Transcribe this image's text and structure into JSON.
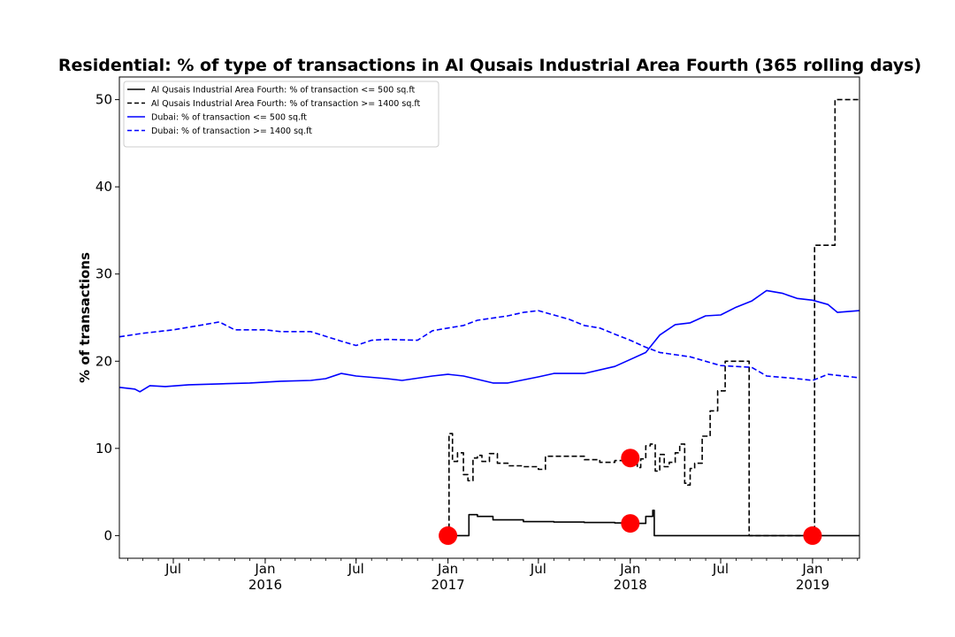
{
  "chart_data": {
    "type": "line",
    "title": "Residential: % of type of transactions in Al Qusais Industrial Area Fourth (365 rolling days)",
    "xlabel": "",
    "ylabel": "% of transactions",
    "xlim": [
      "2015-03-15",
      "2019-04-05"
    ],
    "ylim": [
      -2.6,
      52.6
    ],
    "yticks": [
      0,
      10,
      20,
      30,
      40,
      50
    ],
    "xticks": [
      {
        "date": "2015-07-01",
        "label": "Jul",
        "year": ""
      },
      {
        "date": "2016-01-01",
        "label": "Jan",
        "year": "2016"
      },
      {
        "date": "2016-07-01",
        "label": "Jul",
        "year": ""
      },
      {
        "date": "2017-01-01",
        "label": "Jan",
        "year": "2017"
      },
      {
        "date": "2017-07-01",
        "label": "Jul",
        "year": ""
      },
      {
        "date": "2018-01-01",
        "label": "Jan",
        "year": "2018"
      },
      {
        "date": "2018-07-01",
        "label": "Jul",
        "year": ""
      },
      {
        "date": "2019-01-01",
        "label": "Jan",
        "year": "2019"
      }
    ],
    "grid": false,
    "legend_position": "top-left",
    "series": [
      {
        "name": "Al Qusais Industrial Area Fourth: % of transaction <= 500 sq.ft",
        "color": "#000000",
        "dash": "solid",
        "step": true,
        "x": [
          "2017-01-01",
          "2017-02-10",
          "2017-02-12",
          "2017-03-01",
          "2017-04-01",
          "2017-06-01",
          "2017-08-01",
          "2017-10-01",
          "2017-12-01",
          "2018-01-01",
          "2018-02-01",
          "2018-02-15",
          "2018-02-18",
          "2019-04-05"
        ],
        "y": [
          0,
          0,
          2.4,
          2.2,
          1.8,
          1.6,
          1.55,
          1.5,
          1.45,
          1.4,
          2.2,
          2.9,
          0,
          0
        ]
      },
      {
        "name": "Al Qusais Industrial Area Fourth: % of transaction >= 1400 sq.ft",
        "color": "#000000",
        "dash": "dashed",
        "step": true,
        "x": [
          "2017-01-01",
          "2017-01-03",
          "2017-01-10",
          "2017-01-20",
          "2017-02-01",
          "2017-02-10",
          "2017-02-20",
          "2017-03-01",
          "2017-03-10",
          "2017-03-25",
          "2017-04-10",
          "2017-05-01",
          "2017-06-01",
          "2017-07-01",
          "2017-07-15",
          "2017-09-01",
          "2017-10-01",
          "2017-11-01",
          "2017-12-01",
          "2018-01-01",
          "2018-01-15",
          "2018-01-22",
          "2018-02-01",
          "2018-02-10",
          "2018-02-20",
          "2018-03-01",
          "2018-03-10",
          "2018-03-20",
          "2018-04-01",
          "2018-04-10",
          "2018-04-20",
          "2018-04-26",
          "2018-05-01",
          "2018-05-10",
          "2018-05-25",
          "2018-06-10",
          "2018-06-25",
          "2018-07-10",
          "2018-08-10",
          "2018-08-25",
          "2018-08-27",
          "2019-01-01",
          "2019-01-05",
          "2019-02-15",
          "2019-04-05"
        ],
        "y": [
          0,
          11.7,
          8.5,
          9.5,
          7.0,
          6.3,
          8.9,
          9.2,
          8.5,
          9.4,
          8.3,
          8.0,
          7.9,
          7.6,
          9.1,
          9.1,
          8.7,
          8.4,
          8.6,
          8.9,
          7.8,
          8.8,
          10.3,
          10.5,
          7.4,
          9.3,
          7.9,
          8.4,
          9.5,
          10.5,
          6.0,
          5.8,
          7.7,
          8.3,
          11.4,
          14.3,
          16.6,
          20.0,
          20.0,
          20.0,
          0,
          0,
          33.3,
          50.0,
          50.0
        ]
      },
      {
        "name": "Dubai: % of transaction <= 500 sq.ft",
        "color": "#0000ff",
        "dash": "solid",
        "step": false,
        "x": [
          "2015-03-15",
          "2015-04-15",
          "2015-04-25",
          "2015-05-15",
          "2015-06-15",
          "2015-08-01",
          "2015-10-01",
          "2015-12-01",
          "2016-02-01",
          "2016-04-01",
          "2016-05-01",
          "2016-06-01",
          "2016-07-01",
          "2016-09-01",
          "2016-10-01",
          "2016-12-01",
          "2017-01-01",
          "2017-02-01",
          "2017-04-01",
          "2017-05-01",
          "2017-07-01",
          "2017-08-01",
          "2017-10-01",
          "2017-12-01",
          "2018-01-01",
          "2018-02-01",
          "2018-03-01",
          "2018-04-01",
          "2018-05-01",
          "2018-06-01",
          "2018-07-01",
          "2018-08-01",
          "2018-09-01",
          "2018-10-01",
          "2018-11-01",
          "2018-12-01",
          "2019-01-01",
          "2019-02-01",
          "2019-02-20",
          "2019-04-05"
        ],
        "y": [
          17.0,
          16.8,
          16.5,
          17.2,
          17.1,
          17.3,
          17.4,
          17.5,
          17.7,
          17.8,
          18.0,
          18.6,
          18.3,
          18.0,
          17.8,
          18.3,
          18.5,
          18.3,
          17.5,
          17.5,
          18.2,
          18.6,
          18.6,
          19.4,
          20.2,
          21.0,
          23.0,
          24.2,
          24.4,
          25.2,
          25.3,
          26.2,
          26.9,
          28.1,
          27.8,
          27.2,
          27.0,
          26.5,
          25.6,
          25.8
        ]
      },
      {
        "name": "Dubai: % of transaction >= 1400 sq.ft",
        "color": "#0000ff",
        "dash": "dashed",
        "step": false,
        "x": [
          "2015-03-15",
          "2015-05-01",
          "2015-07-01",
          "2015-09-01",
          "2015-10-01",
          "2015-11-01",
          "2016-01-01",
          "2016-02-01",
          "2016-04-01",
          "2016-06-01",
          "2016-07-01",
          "2016-08-01",
          "2016-09-01",
          "2016-11-01",
          "2016-12-01",
          "2017-01-01",
          "2017-02-01",
          "2017-03-01",
          "2017-05-01",
          "2017-06-01",
          "2017-07-01",
          "2017-09-01",
          "2017-10-01",
          "2017-11-01",
          "2017-12-01",
          "2018-01-01",
          "2018-02-01",
          "2018-03-01",
          "2018-05-01",
          "2018-07-01",
          "2018-09-01",
          "2018-10-01",
          "2018-12-01",
          "2019-01-01",
          "2019-02-01",
          "2019-04-05"
        ],
        "y": [
          22.8,
          23.2,
          23.6,
          24.2,
          24.5,
          23.6,
          23.6,
          23.4,
          23.4,
          22.3,
          21.8,
          22.4,
          22.5,
          22.4,
          23.5,
          23.8,
          24.1,
          24.7,
          25.2,
          25.6,
          25.8,
          24.8,
          24.1,
          23.8,
          23.1,
          22.4,
          21.6,
          21.0,
          20.5,
          19.5,
          19.3,
          18.3,
          18.0,
          17.8,
          18.5,
          18.1
        ]
      }
    ],
    "markers": {
      "color": "#ff0000",
      "points": [
        {
          "x": "2017-01-01",
          "y": 0
        },
        {
          "x": "2018-01-01",
          "y": 8.9
        },
        {
          "x": "2018-01-01",
          "y": 1.4
        },
        {
          "x": "2019-01-01",
          "y": 0
        }
      ]
    }
  }
}
